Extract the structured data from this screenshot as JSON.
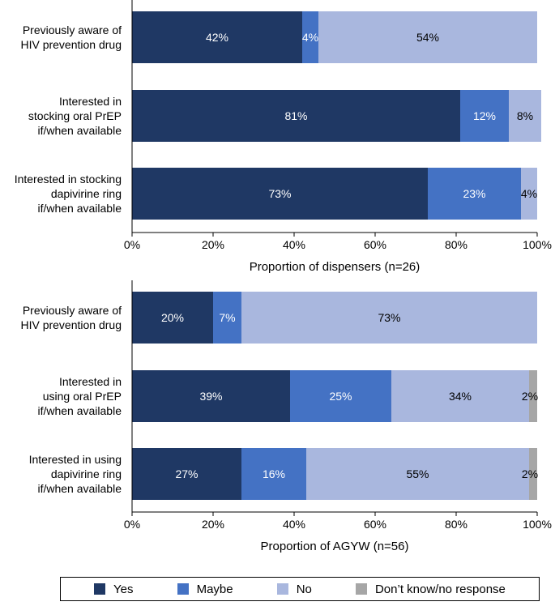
{
  "chart_data": [
    {
      "type": "bar",
      "orientation": "horizontal",
      "stacked": true,
      "categories": [
        [
          "Previously aware of",
          "HIV prevention drug"
        ],
        [
          "Interested in",
          "stocking oral PrEP",
          "if/when available"
        ],
        [
          "Interested in stocking",
          "dapivirine ring",
          "if/when available"
        ]
      ],
      "series": [
        {
          "name": "Yes",
          "values": [
            42,
            81,
            73
          ],
          "labels": [
            "42%",
            "81%",
            "73%"
          ]
        },
        {
          "name": "Maybe",
          "values": [
            4,
            12,
            23
          ],
          "labels": [
            "4%",
            "12%",
            "23%"
          ]
        },
        {
          "name": "No",
          "values": [
            54,
            8,
            4
          ],
          "labels": [
            "54%",
            "8%",
            "4%"
          ]
        }
      ],
      "xlabel": "Proportion of dispensers (n=26)",
      "xlim": [
        0,
        100
      ],
      "xticks": [
        "0%",
        "20%",
        "40%",
        "60%",
        "80%",
        "100%"
      ]
    },
    {
      "type": "bar",
      "orientation": "horizontal",
      "stacked": true,
      "categories": [
        [
          "Previously aware of",
          "HIV prevention drug"
        ],
        [
          "Interested in",
          "using oral PrEP",
          "if/when available"
        ],
        [
          "Interested in using",
          "dapivirine ring",
          "if/when available"
        ]
      ],
      "series": [
        {
          "name": "Yes",
          "values": [
            20,
            39,
            27
          ],
          "labels": [
            "20%",
            "39%",
            "27%"
          ]
        },
        {
          "name": "Maybe",
          "values": [
            7,
            25,
            16
          ],
          "labels": [
            "7%",
            "25%",
            "16%"
          ]
        },
        {
          "name": "No",
          "values": [
            73,
            34,
            55
          ],
          "labels": [
            "73%",
            "34%",
            "55%"
          ]
        },
        {
          "name": "Don’t know/no response",
          "values": [
            0,
            2,
            2
          ],
          "labels": [
            "",
            "2%",
            "2%"
          ]
        }
      ],
      "xlabel": "Proportion of AGYW (n=56)",
      "xlim": [
        0,
        100
      ],
      "xticks": [
        "0%",
        "20%",
        "40%",
        "60%",
        "80%",
        "100%"
      ]
    }
  ],
  "legend": {
    "items": [
      {
        "label": "Yes",
        "color": "#1f3864"
      },
      {
        "label": "Maybe",
        "color": "#4472c4"
      },
      {
        "label": "No",
        "color": "#a9b7de"
      },
      {
        "label": "Don’t know/no response",
        "color": "#a6a6a6"
      }
    ]
  },
  "colors": {
    "Yes": "#1f3864",
    "Maybe": "#4472c4",
    "No": "#a9b7de",
    "Don’t know/no response": "#a6a6a6"
  },
  "label_colors": {
    "Yes": "#ffffff",
    "Maybe": "#ffffff",
    "No": "#000000",
    "Don’t know/no response": "#000000"
  }
}
